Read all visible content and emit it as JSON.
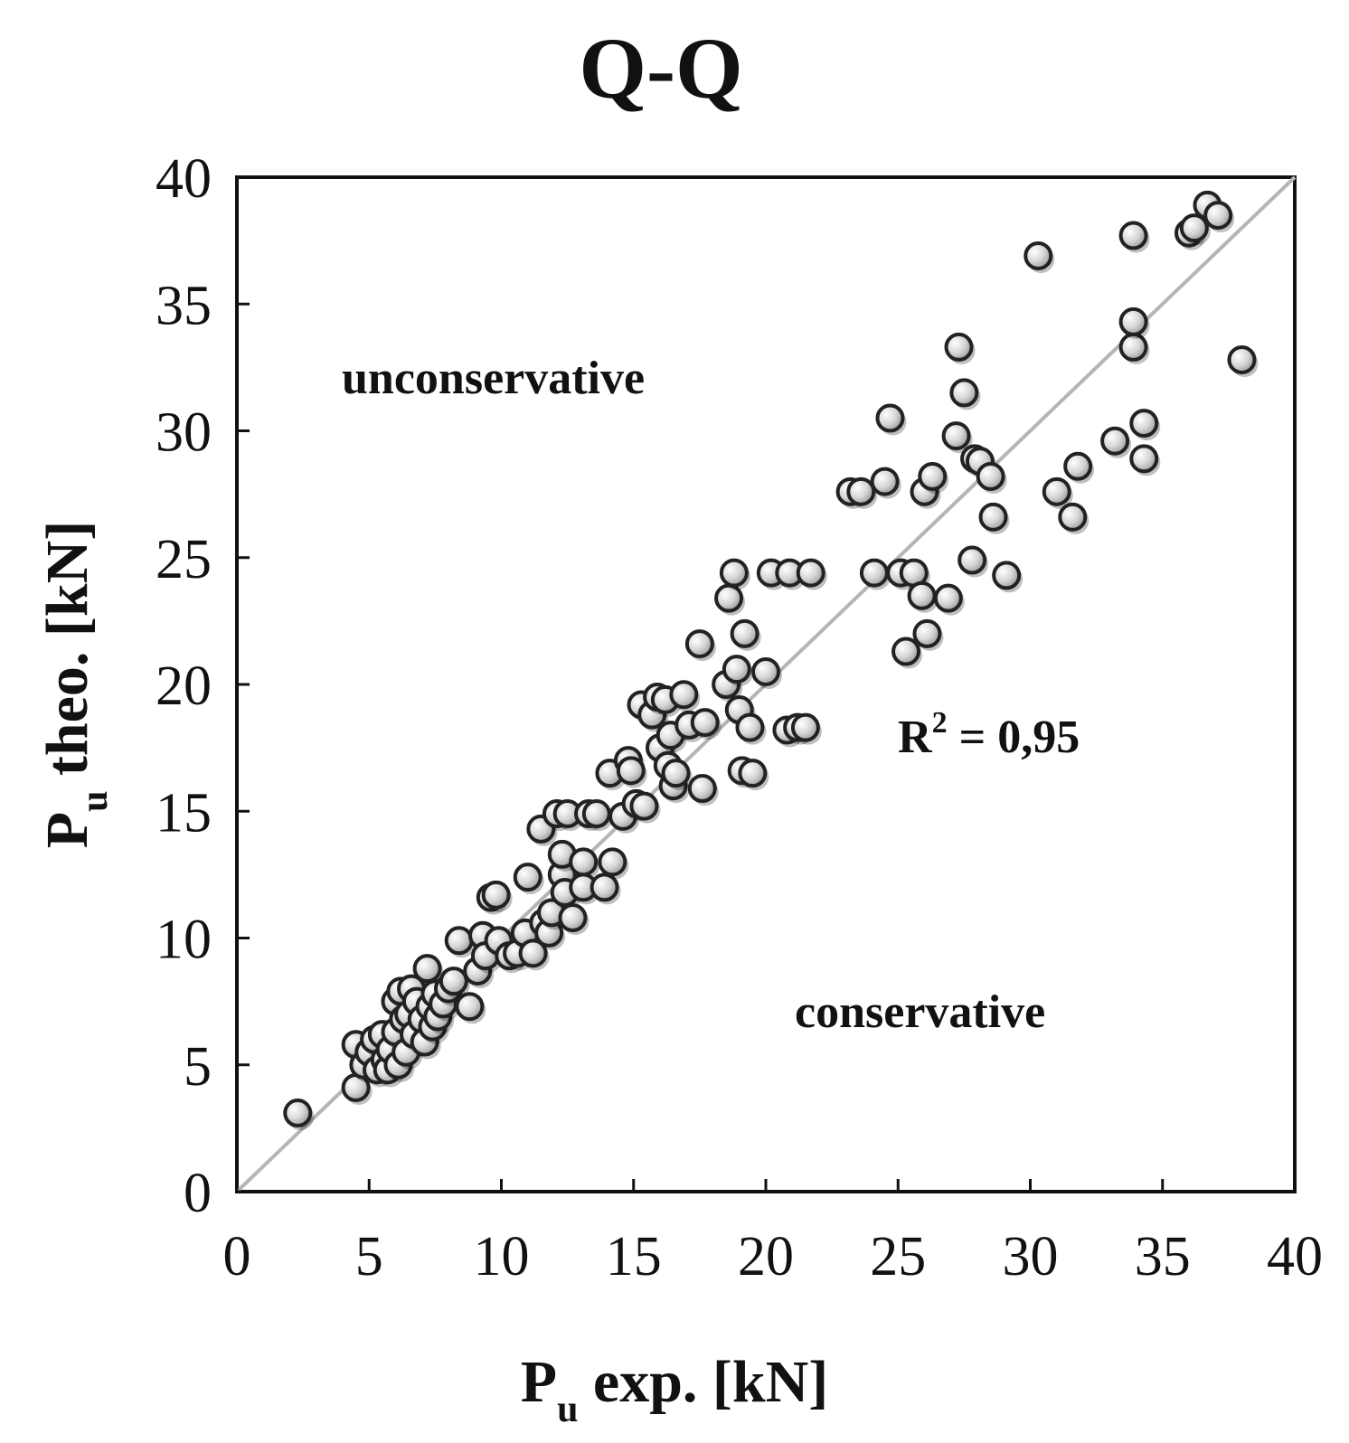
{
  "chart_data": {
    "type": "scatter",
    "title": "Q-Q",
    "xlabel": {
      "main": "P",
      "sub": "u",
      "rest": " exp. [kN]"
    },
    "ylabel": {
      "main": "P",
      "sub": "u",
      "rest": " theo. [kN]"
    },
    "xlim": [
      0,
      40
    ],
    "ylim": [
      0,
      40
    ],
    "xticks": [
      "0",
      "5",
      "10",
      "15",
      "20",
      "25",
      "30",
      "35",
      "40"
    ],
    "yticks": [
      "0",
      "5",
      "10",
      "15",
      "20",
      "25",
      "30",
      "35",
      "40"
    ],
    "reference_line": {
      "from": [
        0,
        0
      ],
      "to": [
        40,
        40
      ],
      "color": "#b8b4b0"
    },
    "annotations": {
      "unconservative": "unconservative",
      "conservative": "conservative",
      "r2_prefix": "R",
      "r2_sup": "2",
      "r2_rest": " = 0,95"
    },
    "marker_color": "#dcdcdc",
    "marker_edge": "#222222",
    "points": [
      [
        2.3,
        3.1
      ],
      [
        4.5,
        4.1
      ],
      [
        4.5,
        5.8
      ],
      [
        4.8,
        5.0
      ],
      [
        5.0,
        5.5
      ],
      [
        5.2,
        6.0
      ],
      [
        5.3,
        4.8
      ],
      [
        5.5,
        6.2
      ],
      [
        5.6,
        5.2
      ],
      [
        5.7,
        4.8
      ],
      [
        5.8,
        5.6
      ],
      [
        6.0,
        6.3
      ],
      [
        6.0,
        7.5
      ],
      [
        6.1,
        5.0
      ],
      [
        6.2,
        7.9
      ],
      [
        6.3,
        6.8
      ],
      [
        6.4,
        5.5
      ],
      [
        6.5,
        7.0
      ],
      [
        6.6,
        8.0
      ],
      [
        6.7,
        6.2
      ],
      [
        6.8,
        7.5
      ],
      [
        7.0,
        6.8
      ],
      [
        7.1,
        5.9
      ],
      [
        7.2,
        8.8
      ],
      [
        7.3,
        7.3
      ],
      [
        7.4,
        6.5
      ],
      [
        7.5,
        7.8
      ],
      [
        7.6,
        6.9
      ],
      [
        7.8,
        7.4
      ],
      [
        8.0,
        8.0
      ],
      [
        8.2,
        8.3
      ],
      [
        8.4,
        9.9
      ],
      [
        8.8,
        7.3
      ],
      [
        9.1,
        8.7
      ],
      [
        9.3,
        10.1
      ],
      [
        9.4,
        9.3
      ],
      [
        9.6,
        11.6
      ],
      [
        9.8,
        11.7
      ],
      [
        9.9,
        9.9
      ],
      [
        10.3,
        9.3
      ],
      [
        10.6,
        9.4
      ],
      [
        10.9,
        10.2
      ],
      [
        11.0,
        12.4
      ],
      [
        11.2,
        9.4
      ],
      [
        11.5,
        14.3
      ],
      [
        11.6,
        10.6
      ],
      [
        11.8,
        10.2
      ],
      [
        11.9,
        11.0
      ],
      [
        12.1,
        14.9
      ],
      [
        12.3,
        12.5
      ],
      [
        12.3,
        13.3
      ],
      [
        12.4,
        11.8
      ],
      [
        12.5,
        14.9
      ],
      [
        12.7,
        10.8
      ],
      [
        13.1,
        13.0
      ],
      [
        13.1,
        12.0
      ],
      [
        13.3,
        14.9
      ],
      [
        13.6,
        14.9
      ],
      [
        13.9,
        12.0
      ],
      [
        14.1,
        16.5
      ],
      [
        14.2,
        13.0
      ],
      [
        14.6,
        14.8
      ],
      [
        14.8,
        17.0
      ],
      [
        14.9,
        16.6
      ],
      [
        15.1,
        15.3
      ],
      [
        15.3,
        19.2
      ],
      [
        15.4,
        15.2
      ],
      [
        15.7,
        18.8
      ],
      [
        15.9,
        19.5
      ],
      [
        16.0,
        17.5
      ],
      [
        16.2,
        19.4
      ],
      [
        16.3,
        16.8
      ],
      [
        16.4,
        18.0
      ],
      [
        16.5,
        16.0
      ],
      [
        16.6,
        16.5
      ],
      [
        16.9,
        19.6
      ],
      [
        17.1,
        18.4
      ],
      [
        17.5,
        21.6
      ],
      [
        17.6,
        15.9
      ],
      [
        17.7,
        18.5
      ],
      [
        18.5,
        20.0
      ],
      [
        18.6,
        23.4
      ],
      [
        18.8,
        24.4
      ],
      [
        18.9,
        20.6
      ],
      [
        19.0,
        19.0
      ],
      [
        19.1,
        16.6
      ],
      [
        19.2,
        22.0
      ],
      [
        19.4,
        18.3
      ],
      [
        19.5,
        16.5
      ],
      [
        20.0,
        20.5
      ],
      [
        20.2,
        24.4
      ],
      [
        20.8,
        18.2
      ],
      [
        20.9,
        24.4
      ],
      [
        21.2,
        18.3
      ],
      [
        21.5,
        18.3
      ],
      [
        21.7,
        24.4
      ],
      [
        23.2,
        27.6
      ],
      [
        23.6,
        27.6
      ],
      [
        24.1,
        24.4
      ],
      [
        24.5,
        28.0
      ],
      [
        24.7,
        30.5
      ],
      [
        25.1,
        24.4
      ],
      [
        25.3,
        21.3
      ],
      [
        25.6,
        24.4
      ],
      [
        25.9,
        23.5
      ],
      [
        26.0,
        27.6
      ],
      [
        26.1,
        22.0
      ],
      [
        26.3,
        28.2
      ],
      [
        26.9,
        23.4
      ],
      [
        27.2,
        29.8
      ],
      [
        27.3,
        33.3
      ],
      [
        27.5,
        31.5
      ],
      [
        27.8,
        24.9
      ],
      [
        27.9,
        28.9
      ],
      [
        28.1,
        28.8
      ],
      [
        28.5,
        28.2
      ],
      [
        28.6,
        26.6
      ],
      [
        29.1,
        24.3
      ],
      [
        30.3,
        36.9
      ],
      [
        31.0,
        27.6
      ],
      [
        31.6,
        26.6
      ],
      [
        31.8,
        28.6
      ],
      [
        33.2,
        29.6
      ],
      [
        33.9,
        33.3
      ],
      [
        33.9,
        34.3
      ],
      [
        33.9,
        37.7
      ],
      [
        34.3,
        28.9
      ],
      [
        34.3,
        30.3
      ],
      [
        36.0,
        37.8
      ],
      [
        36.2,
        38.0
      ],
      [
        36.7,
        38.9
      ],
      [
        37.1,
        38.5
      ],
      [
        38.0,
        32.8
      ]
    ]
  }
}
